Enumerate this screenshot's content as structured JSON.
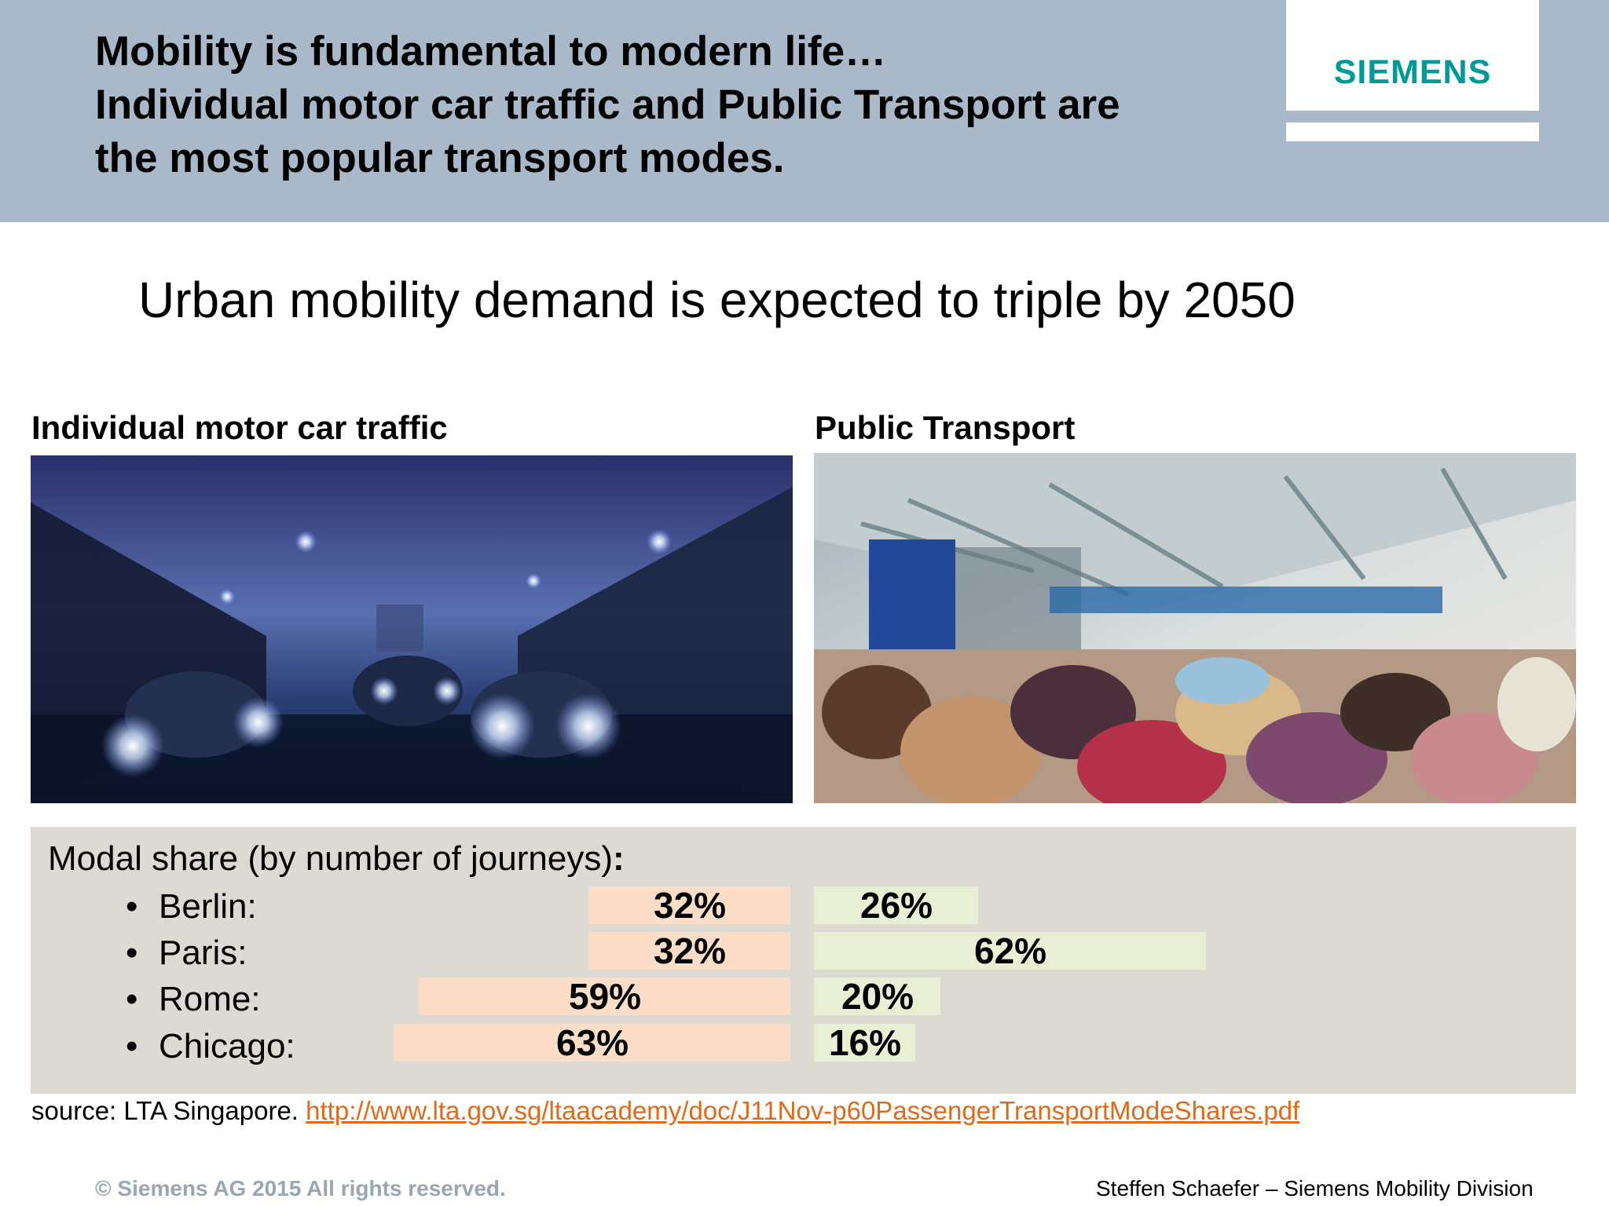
{
  "header": {
    "title_lines": [
      "Mobility is fundamental to modern life…",
      "Individual motor car traffic and Public Transport are",
      "the most popular transport modes."
    ],
    "logo_text": "SIEMENS",
    "colors": {
      "band": "#aab9ca",
      "logo": "#009999"
    }
  },
  "subtitle": "Urban mobility demand is expected to triple by 2050",
  "sections": {
    "car": {
      "heading": "Individual motor car traffic"
    },
    "public": {
      "heading": "Public Transport"
    }
  },
  "modal_share": {
    "heading": "Modal share (by number of journeys)",
    "heading_suffix": ":",
    "rows": [
      {
        "bullet": "•",
        "city": "Berlin:",
        "car_label": "32%",
        "car_value": 32,
        "pt_label": "26%",
        "pt_value": 26
      },
      {
        "bullet": "•",
        "city": "Paris:",
        "car_label": "32%",
        "car_value": 32,
        "pt_label": "62%",
        "pt_value": 62
      },
      {
        "bullet": "•",
        "city": "Rome:",
        "car_label": "59%",
        "car_value": 59,
        "pt_label": "20%",
        "pt_value": 20
      },
      {
        "bullet": "•",
        "city": "Chicago:",
        "car_label": "63%",
        "car_value": 63,
        "pt_label": "16%",
        "pt_value": 16
      }
    ],
    "colors": {
      "car": "#fbddc8",
      "public": "#e8efd4",
      "panel": "#dcdad2"
    }
  },
  "source": {
    "prefix": "source: LTA Singapore. ",
    "link": "http://www.lta.gov.sg/ltaacademy/doc/J11Nov-p60PassengerTransportModeShares.pdf"
  },
  "footer": {
    "copyright": "© Siemens AG 2015 All rights reserved.",
    "author": "Steffen Schaefer – Siemens Mobility Division"
  }
}
